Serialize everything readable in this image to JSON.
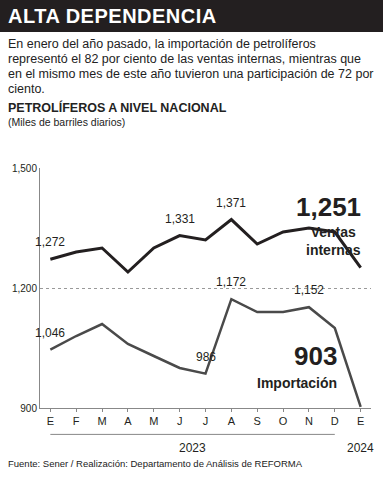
{
  "chart_data": {
    "type": "line",
    "title": "ALTA DEPENDENCIA",
    "subtitle": "En enero del año pasado, la importación de petrolíferos representó el 82 por ciento de las ventas internas, mientras que en el mismo mes de este año tuvieron una participación de 72 por ciento.",
    "panel_title": "PETROLÍFEROS A NIVEL NACIONAL",
    "y_label": "(Miles de barriles diarios)",
    "source": "Fuente: Sener / Realización: Departamento de Análisis de REFORMA",
    "categories": [
      "E",
      "F",
      "M",
      "A",
      "M",
      "J",
      "J",
      "A",
      "S",
      "O",
      "N",
      "D",
      "E"
    ],
    "x_groups": [
      {
        "label": "2023",
        "from": 0,
        "to": 11
      },
      {
        "label": "2024",
        "from": 12,
        "to": 12
      }
    ],
    "series": [
      {
        "name": "Ventas internas",
        "color": "#231f20",
        "values": [
          1272,
          1290,
          1300,
          1240,
          1300,
          1331,
          1320,
          1371,
          1310,
          1340,
          1350,
          1340,
          1251
        ],
        "value_labels": [
          "1,272",
          null,
          null,
          null,
          null,
          "1,331",
          null,
          "1,371",
          null,
          null,
          null,
          null,
          "1,251"
        ]
      },
      {
        "name": "Importación",
        "color": "#4a4a4a",
        "values": [
          1046,
          1080,
          1110,
          1060,
          1030,
          1000,
          986,
          1172,
          1140,
          1140,
          1152,
          1100,
          903
        ],
        "value_labels": [
          "1,046",
          null,
          null,
          null,
          null,
          null,
          "986",
          "1,172",
          null,
          null,
          "1,152",
          null,
          "903"
        ]
      }
    ],
    "ylim": [
      900,
      1500
    ],
    "yticks": [
      {
        "value": 900,
        "label": "900"
      },
      {
        "value": 1200,
        "label": "1,200"
      },
      {
        "value": 1500,
        "label": "1,500"
      }
    ],
    "grid": true
  }
}
